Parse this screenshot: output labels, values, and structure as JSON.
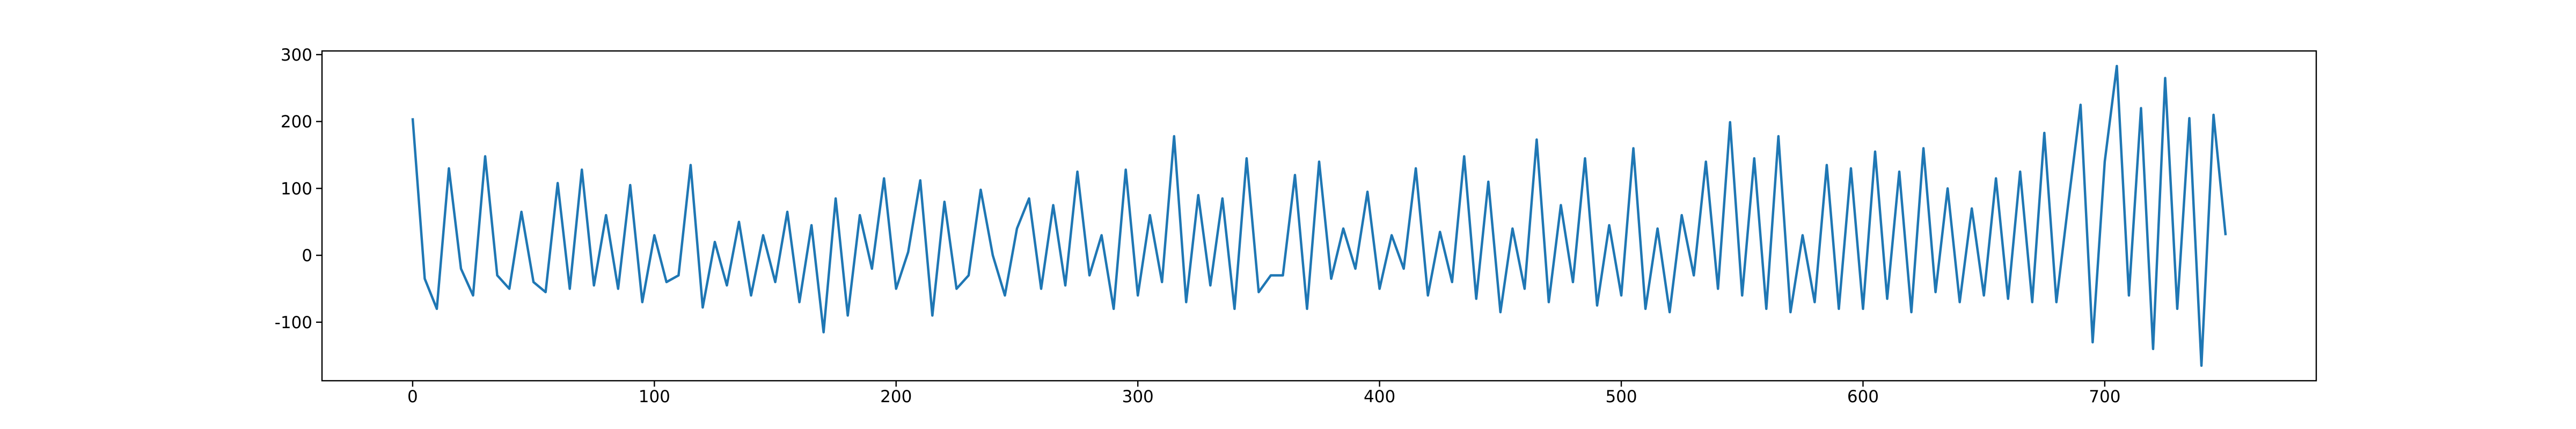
{
  "chart_data": {
    "type": "line",
    "x": [
      0,
      5,
      10,
      15,
      20,
      25,
      30,
      35,
      40,
      45,
      50,
      55,
      60,
      65,
      70,
      75,
      80,
      85,
      90,
      95,
      100,
      105,
      110,
      115,
      120,
      125,
      130,
      135,
      140,
      145,
      150,
      155,
      160,
      165,
      170,
      175,
      180,
      185,
      190,
      195,
      200,
      205,
      210,
      215,
      220,
      225,
      230,
      235,
      240,
      245,
      250,
      255,
      260,
      265,
      270,
      275,
      280,
      285,
      290,
      295,
      300,
      305,
      310,
      315,
      320,
      325,
      330,
      335,
      340,
      345,
      350,
      355,
      360,
      365,
      370,
      375,
      380,
      385,
      390,
      395,
      400,
      405,
      410,
      415,
      420,
      425,
      430,
      435,
      440,
      445,
      450,
      455,
      460,
      465,
      470,
      475,
      480,
      485,
      490,
      495,
      500,
      505,
      510,
      515,
      520,
      525,
      530,
      535,
      540,
      545,
      550,
      555,
      560,
      565,
      570,
      575,
      580,
      585,
      590,
      595,
      600,
      605,
      610,
      615,
      620,
      625,
      630,
      635,
      640,
      645,
      650,
      655,
      660,
      665,
      670,
      675,
      680,
      685,
      690,
      695,
      700,
      705,
      710,
      715,
      720,
      725,
      730,
      735,
      740,
      745,
      750
    ],
    "series": [
      {
        "color": "#1f77b4",
        "values": [
          205,
          -35,
          -80,
          130,
          -20,
          -60,
          148,
          -30,
          -50,
          65,
          -40,
          -55,
          108,
          -50,
          128,
          -45,
          60,
          -50,
          105,
          -70,
          30,
          -40,
          -30,
          135,
          -78,
          20,
          -45,
          50,
          -60,
          30,
          -40,
          65,
          -70,
          45,
          -115,
          85,
          -90,
          60,
          -20,
          115,
          -50,
          5,
          112,
          -90,
          80,
          -50,
          -30,
          98,
          0,
          -60,
          40,
          85,
          -50,
          75,
          -45,
          125,
          -30,
          30,
          -80,
          128,
          -60,
          60,
          -40,
          178,
          -70,
          90,
          -45,
          85,
          -80,
          145,
          -55,
          -30,
          -30,
          120,
          -80,
          140,
          -35,
          40,
          -20,
          95,
          -50,
          30,
          -20,
          130,
          -60,
          35,
          -40,
          148,
          -65,
          110,
          -85,
          40,
          -50,
          173,
          -70,
          75,
          -40,
          145,
          -75,
          45,
          -60,
          160,
          -80,
          40,
          -85,
          60,
          -30,
          140,
          -50,
          199,
          -60,
          145,
          -80,
          178,
          -85,
          30,
          -70,
          135,
          -80,
          130,
          -80,
          155,
          -65,
          125,
          -85,
          160,
          -55,
          100,
          -70,
          70,
          -60,
          115,
          -65,
          125,
          -70,
          183,
          -70,
          80,
          225,
          -130,
          140,
          283,
          -60,
          220,
          -140,
          265,
          -80,
          205,
          -165,
          210,
          30
        ]
      }
    ],
    "xlim": [
      -37.5,
      787.5
    ],
    "ylim": [
      -187.5,
      305.5
    ],
    "xticks": [
      0,
      100,
      200,
      300,
      400,
      500,
      600,
      700
    ],
    "yticks": [
      -100,
      0,
      100,
      200,
      300
    ]
  }
}
